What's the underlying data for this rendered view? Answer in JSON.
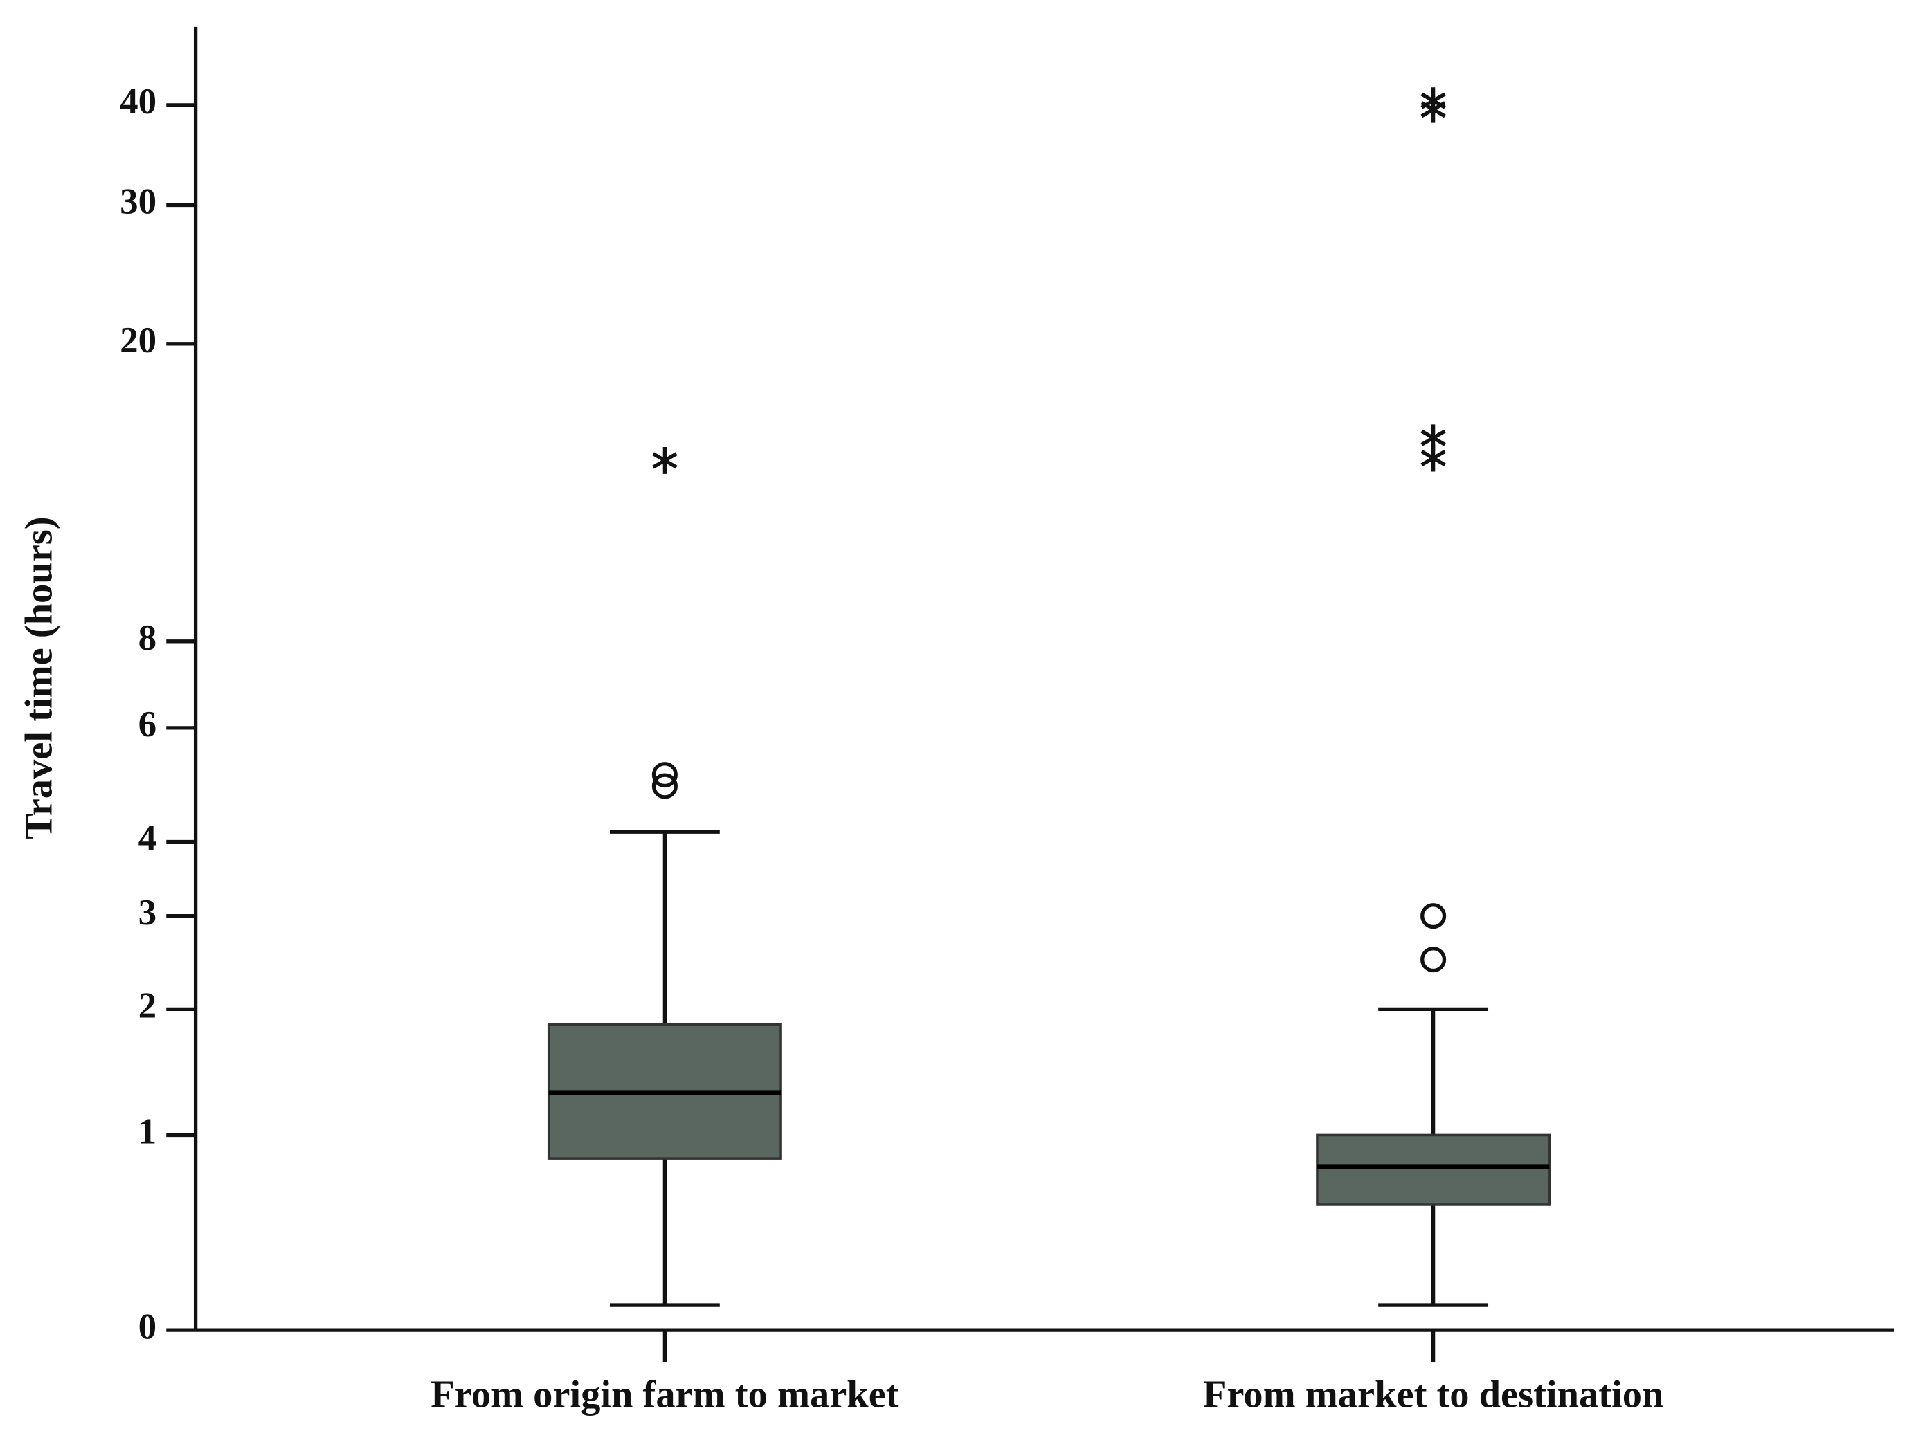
{
  "chart_data": {
    "type": "box",
    "y_label": "Travel time (hours)",
    "categories": [
      "From origin farm to market",
      "From market to destination"
    ],
    "boxes": [
      {
        "whislo": 0.1,
        "q1": 0.85,
        "med": 1.3,
        "q3": 1.86,
        "whishi": 4.15,
        "outliers": [
          4.9,
          5.1
        ],
        "extremes": [
          14.1
        ]
      },
      {
        "whislo": 0.1,
        "q1": 0.58,
        "med": 0.8,
        "q3": 1.0,
        "whishi": 2.0,
        "outliers": [
          2.5,
          3.0
        ],
        "extremes": [
          14.2,
          15.1,
          39.5,
          40.5
        ]
      }
    ],
    "color": "#5a6660",
    "ylim": [
      0,
      50
    ],
    "yticks": [
      0,
      1,
      2,
      3,
      4,
      6,
      8,
      20,
      30,
      40
    ]
  }
}
